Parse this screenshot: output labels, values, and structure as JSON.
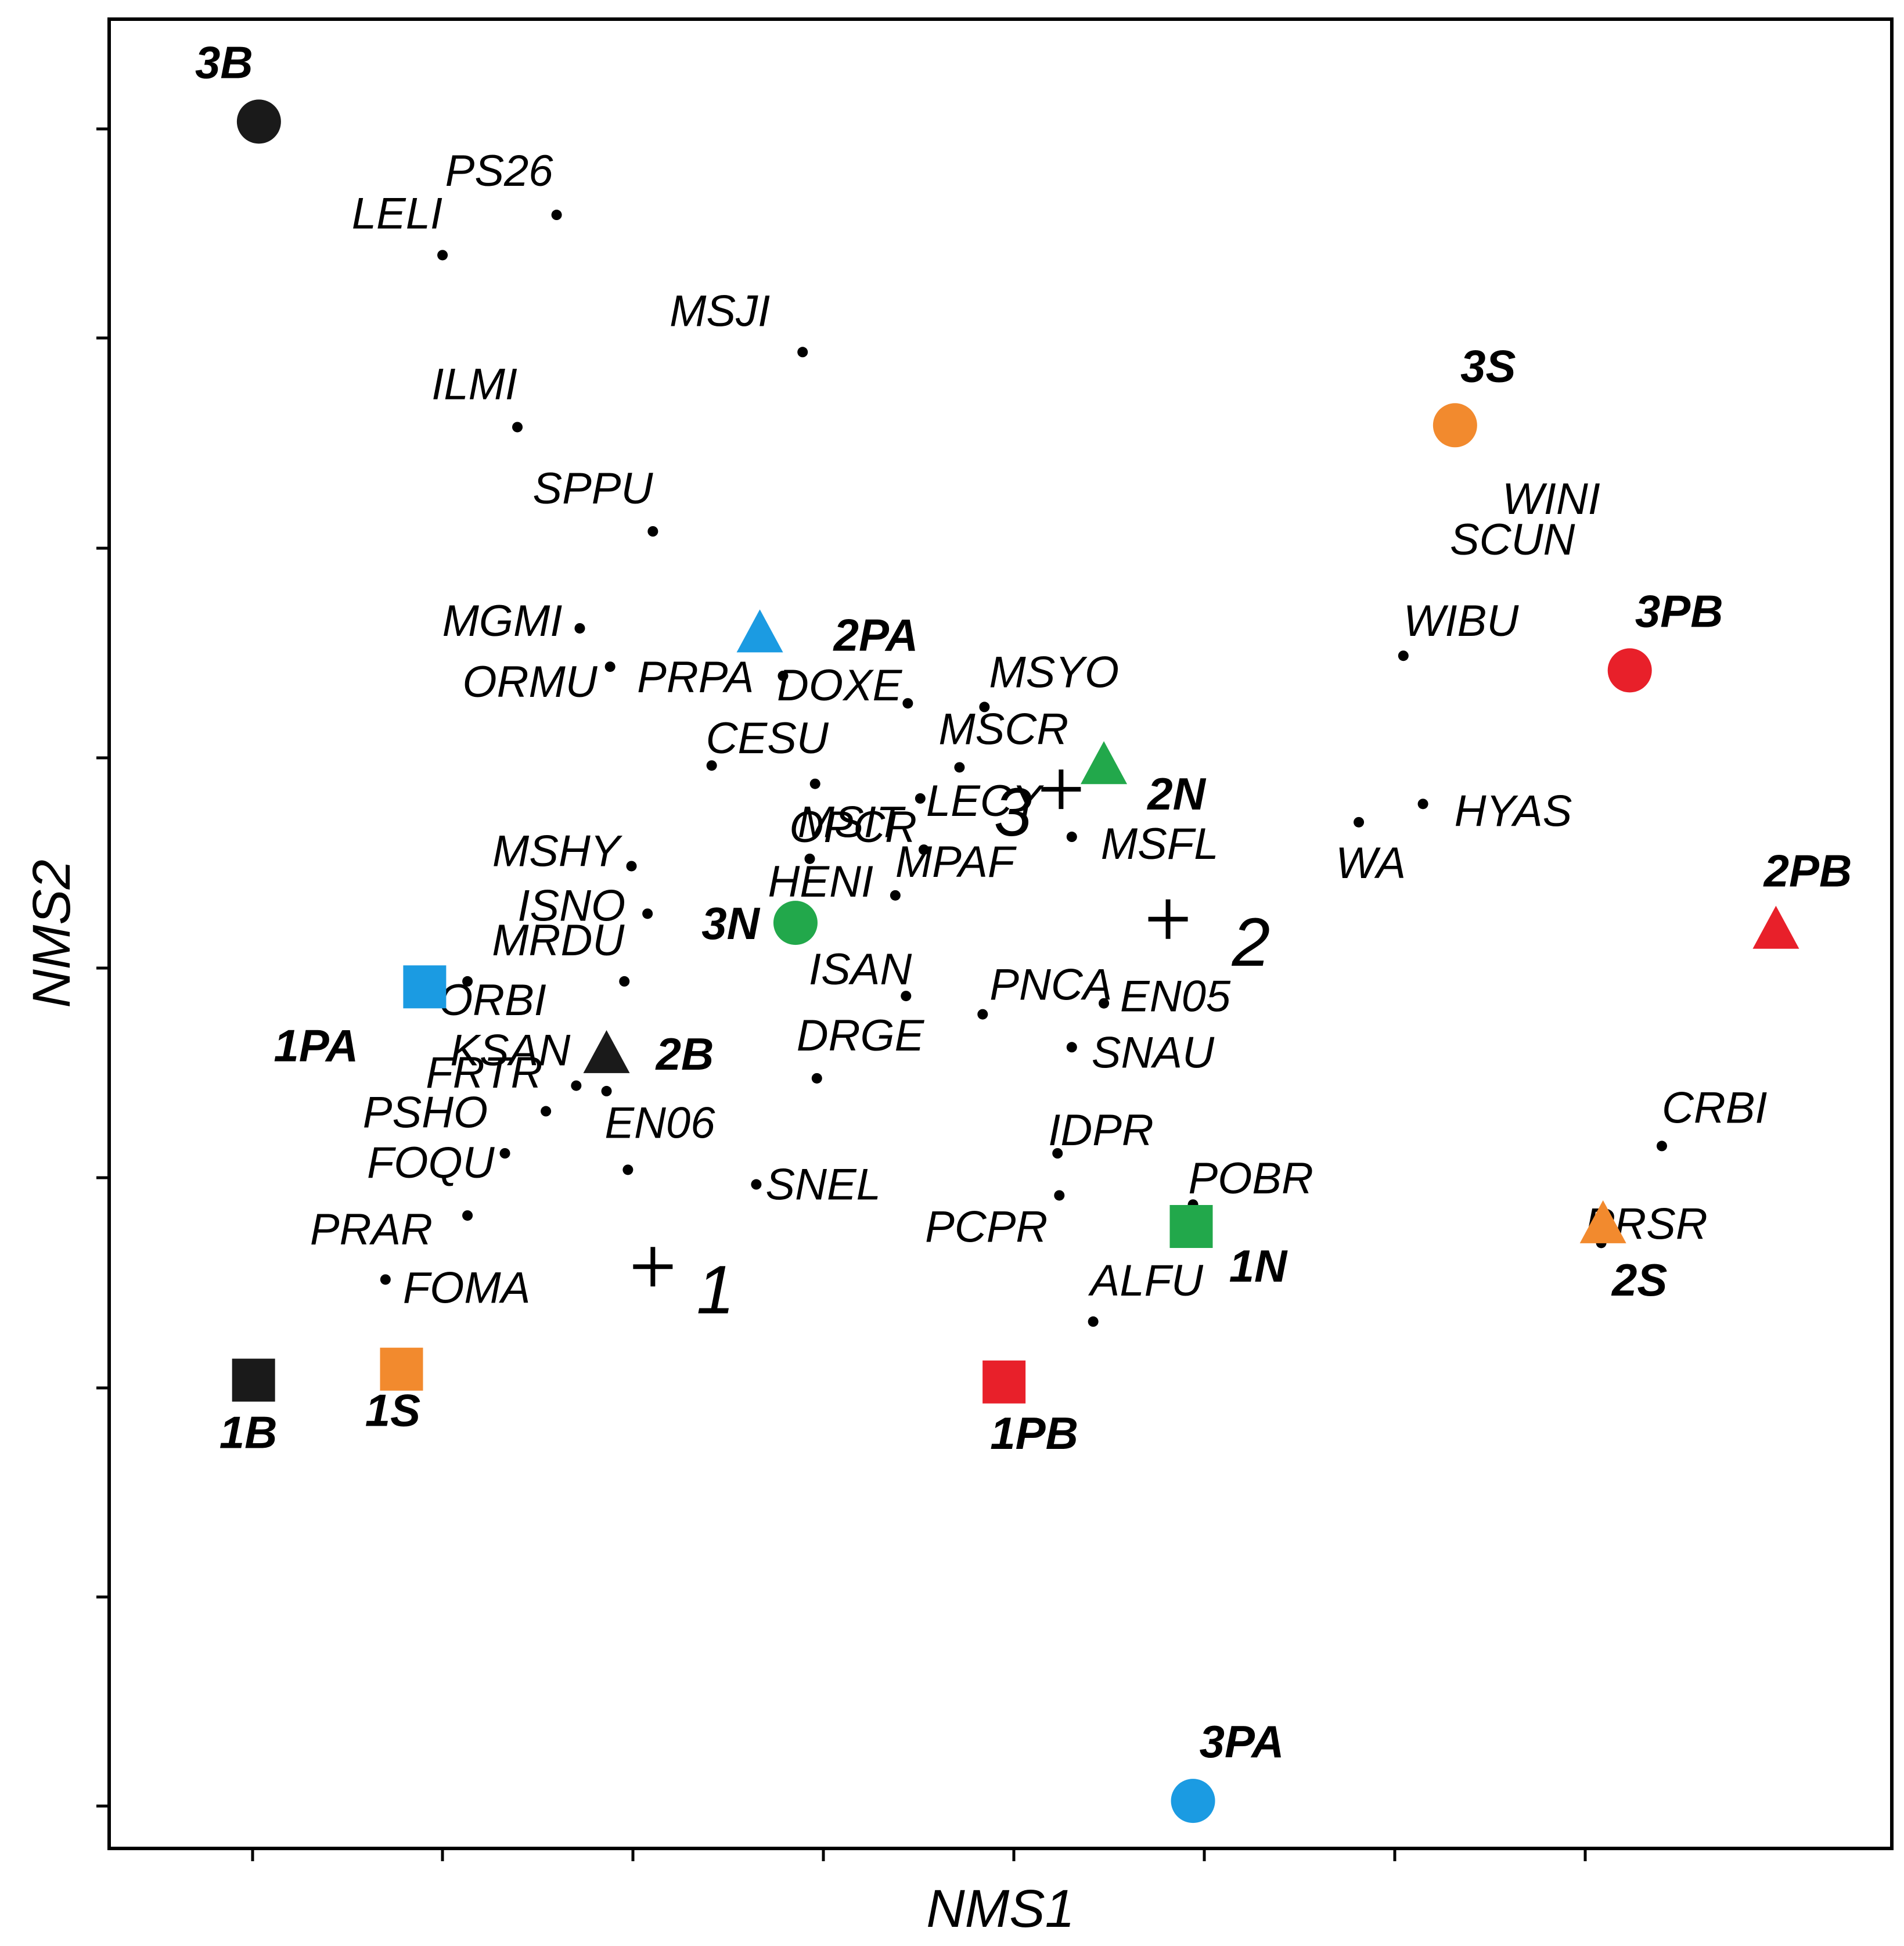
{
  "chart_data": {
    "type": "scatter",
    "xlabel": "NMS1",
    "ylabel": "NMS2",
    "xlim": [
      0,
      1
    ],
    "ylim": [
      0,
      1
    ],
    "grid": false,
    "legend": "none",
    "site_colors": {
      "B": "#1a1a1a",
      "S": "#f28a2e",
      "PA": "#1b9be2",
      "N": "#22a84b",
      "PB": "#e8202a"
    },
    "species": [
      {
        "label": "PS26",
        "x": 0.251,
        "y": 0.893
      },
      {
        "label": "LELI",
        "x": 0.187,
        "y": 0.871
      },
      {
        "label": "MSJI",
        "x": 0.389,
        "y": 0.818
      },
      {
        "label": "ILMI",
        "x": 0.229,
        "y": 0.777
      },
      {
        "label": "SPPU",
        "x": 0.305,
        "y": 0.72
      },
      {
        "label": "MGMI",
        "x": 0.264,
        "y": 0.667
      },
      {
        "label": "ORMU",
        "x": 0.281,
        "y": 0.646
      },
      {
        "label": "PRPA",
        "x": 0.378,
        "y": 0.641
      },
      {
        "label": "DOXE",
        "x": 0.448,
        "y": 0.626
      },
      {
        "label": "MSYO",
        "x": 0.491,
        "y": 0.624
      },
      {
        "label": "CESU",
        "x": 0.338,
        "y": 0.592
      },
      {
        "label": "MSCR",
        "x": 0.477,
        "y": 0.591
      },
      {
        "label": "MSIT",
        "x": 0.396,
        "y": 0.582
      },
      {
        "label": "LECY",
        "x": 0.455,
        "y": 0.574
      },
      {
        "label": "MSFL",
        "x": 0.54,
        "y": 0.553
      },
      {
        "label": "OPCR",
        "x": 0.457,
        "y": 0.546
      },
      {
        "label": "HENI",
        "x": 0.393,
        "y": 0.541
      },
      {
        "label": "MSHY",
        "x": 0.293,
        "y": 0.537
      },
      {
        "label": "MPAF",
        "x": 0.441,
        "y": 0.521
      },
      {
        "label": "ISNO",
        "x": 0.302,
        "y": 0.511
      },
      {
        "label": "MRDU",
        "x": 0.289,
        "y": 0.474
      },
      {
        "label": "ORBI",
        "x": 0.201,
        "y": 0.474
      },
      {
        "label": "ISAN",
        "x": 0.447,
        "y": 0.466
      },
      {
        "label": "EN05",
        "x": 0.558,
        "y": 0.462
      },
      {
        "label": "PNCA",
        "x": 0.49,
        "y": 0.456
      },
      {
        "label": "SNAU",
        "x": 0.54,
        "y": 0.438
      },
      {
        "label": "DRGE",
        "x": 0.397,
        "y": 0.421
      },
      {
        "label": "KSAN",
        "x": 0.262,
        "y": 0.417
      },
      {
        "label": "FRTR",
        "x": 0.279,
        "y": 0.414
      },
      {
        "label": "PSHO",
        "x": 0.245,
        "y": 0.403
      },
      {
        "label": "IDPR",
        "x": 0.532,
        "y": 0.38
      },
      {
        "label": "FOQU",
        "x": 0.222,
        "y": 0.38
      },
      {
        "label": "EN06",
        "x": 0.291,
        "y": 0.371
      },
      {
        "label": "SNEL",
        "x": 0.363,
        "y": 0.363
      },
      {
        "label": "PCPR",
        "x": 0.533,
        "y": 0.357
      },
      {
        "label": "POBR",
        "x": 0.608,
        "y": 0.352
      },
      {
        "label": "PRAR",
        "x": 0.201,
        "y": 0.346
      },
      {
        "label": "FOMA",
        "x": 0.155,
        "y": 0.311
      },
      {
        "label": "ALFU",
        "x": 0.552,
        "y": 0.288
      },
      {
        "label": "WIBU",
        "x": 0.726,
        "y": 0.652
      },
      {
        "label": "HYAS",
        "x": 0.737,
        "y": 0.571
      },
      {
        "label": "WA",
        "x": 0.701,
        "y": 0.561
      },
      {
        "label": "CRBI",
        "x": 0.871,
        "y": 0.384
      },
      {
        "label": "WINI",
        "x": 0.757,
        "y": 0.748
      },
      {
        "label": "SCUN",
        "x": 0.757,
        "y": 0.748
      },
      {
        "label": "PRSR",
        "x": 0.837,
        "y": 0.331
      }
    ],
    "sites": [
      {
        "label": "3B",
        "x": 0.084,
        "y": 0.944,
        "shape": "circle",
        "color_key": "B"
      },
      {
        "label": "3S",
        "x": 0.755,
        "y": 0.778,
        "shape": "circle",
        "color_key": "S"
      },
      {
        "label": "3PB",
        "x": 0.853,
        "y": 0.644,
        "shape": "circle",
        "color_key": "PB"
      },
      {
        "label": "3N",
        "x": 0.385,
        "y": 0.506,
        "shape": "circle",
        "color_key": "N"
      },
      {
        "label": "3PA",
        "x": 0.608,
        "y": 0.026,
        "shape": "circle",
        "color_key": "PA"
      },
      {
        "label": "2PA",
        "x": 0.365,
        "y": 0.664,
        "shape": "triangle",
        "color_key": "PA"
      },
      {
        "label": "2N",
        "x": 0.558,
        "y": 0.592,
        "shape": "triangle",
        "color_key": "N"
      },
      {
        "label": "2PB",
        "x": 0.935,
        "y": 0.502,
        "shape": "triangle",
        "color_key": "PB"
      },
      {
        "label": "2B",
        "x": 0.279,
        "y": 0.434,
        "shape": "triangle",
        "color_key": "B"
      },
      {
        "label": "2S",
        "x": 0.838,
        "y": 0.341,
        "shape": "triangle",
        "color_key": "S"
      },
      {
        "label": "1PA",
        "x": 0.177,
        "y": 0.471,
        "shape": "square",
        "color_key": "PA"
      },
      {
        "label": "1N",
        "x": 0.607,
        "y": 0.34,
        "shape": "square",
        "color_key": "N"
      },
      {
        "label": "1B",
        "x": 0.081,
        "y": 0.256,
        "shape": "square",
        "color_key": "B"
      },
      {
        "label": "1S",
        "x": 0.164,
        "y": 0.262,
        "shape": "square",
        "color_key": "S"
      },
      {
        "label": "1PB",
        "x": 0.502,
        "y": 0.255,
        "shape": "square",
        "color_key": "PB"
      }
    ],
    "group_centroids": [
      {
        "label": "3",
        "x": 0.534,
        "y": 0.579
      },
      {
        "label": "2",
        "x": 0.594,
        "y": 0.508
      },
      {
        "label": "1",
        "x": 0.305,
        "y": 0.318
      }
    ]
  }
}
